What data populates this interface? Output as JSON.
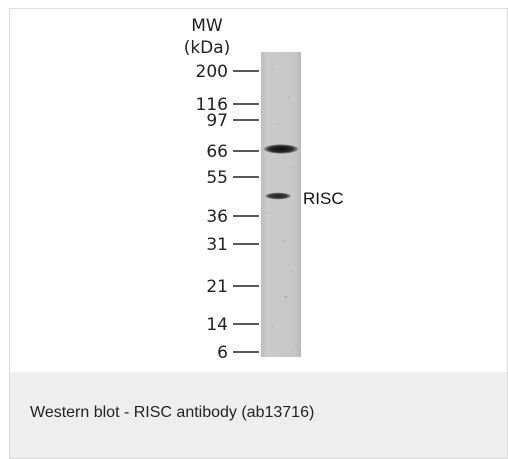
{
  "figure": {
    "type": "western-blot",
    "mw_header": [
      "MW",
      "(kDa)"
    ],
    "markers": [
      {
        "kda": "200"
      },
      {
        "kda": "116"
      },
      {
        "kda": "97"
      },
      {
        "kda": "66"
      },
      {
        "kda": "55"
      },
      {
        "kda": "36"
      },
      {
        "kda": "31"
      },
      {
        "kda": "21"
      },
      {
        "kda": "14"
      },
      {
        "kda": "6"
      }
    ],
    "bands": [
      {
        "kda_near": "66",
        "intensity": "strong"
      },
      {
        "kda_near": "55-36",
        "intensity": "medium",
        "label": "RISC"
      }
    ],
    "lane_color": "#c9c9c9",
    "band_color": "#1a1a1a"
  },
  "caption": {
    "text": "Western blot - RISC antibody (ab13716)"
  }
}
